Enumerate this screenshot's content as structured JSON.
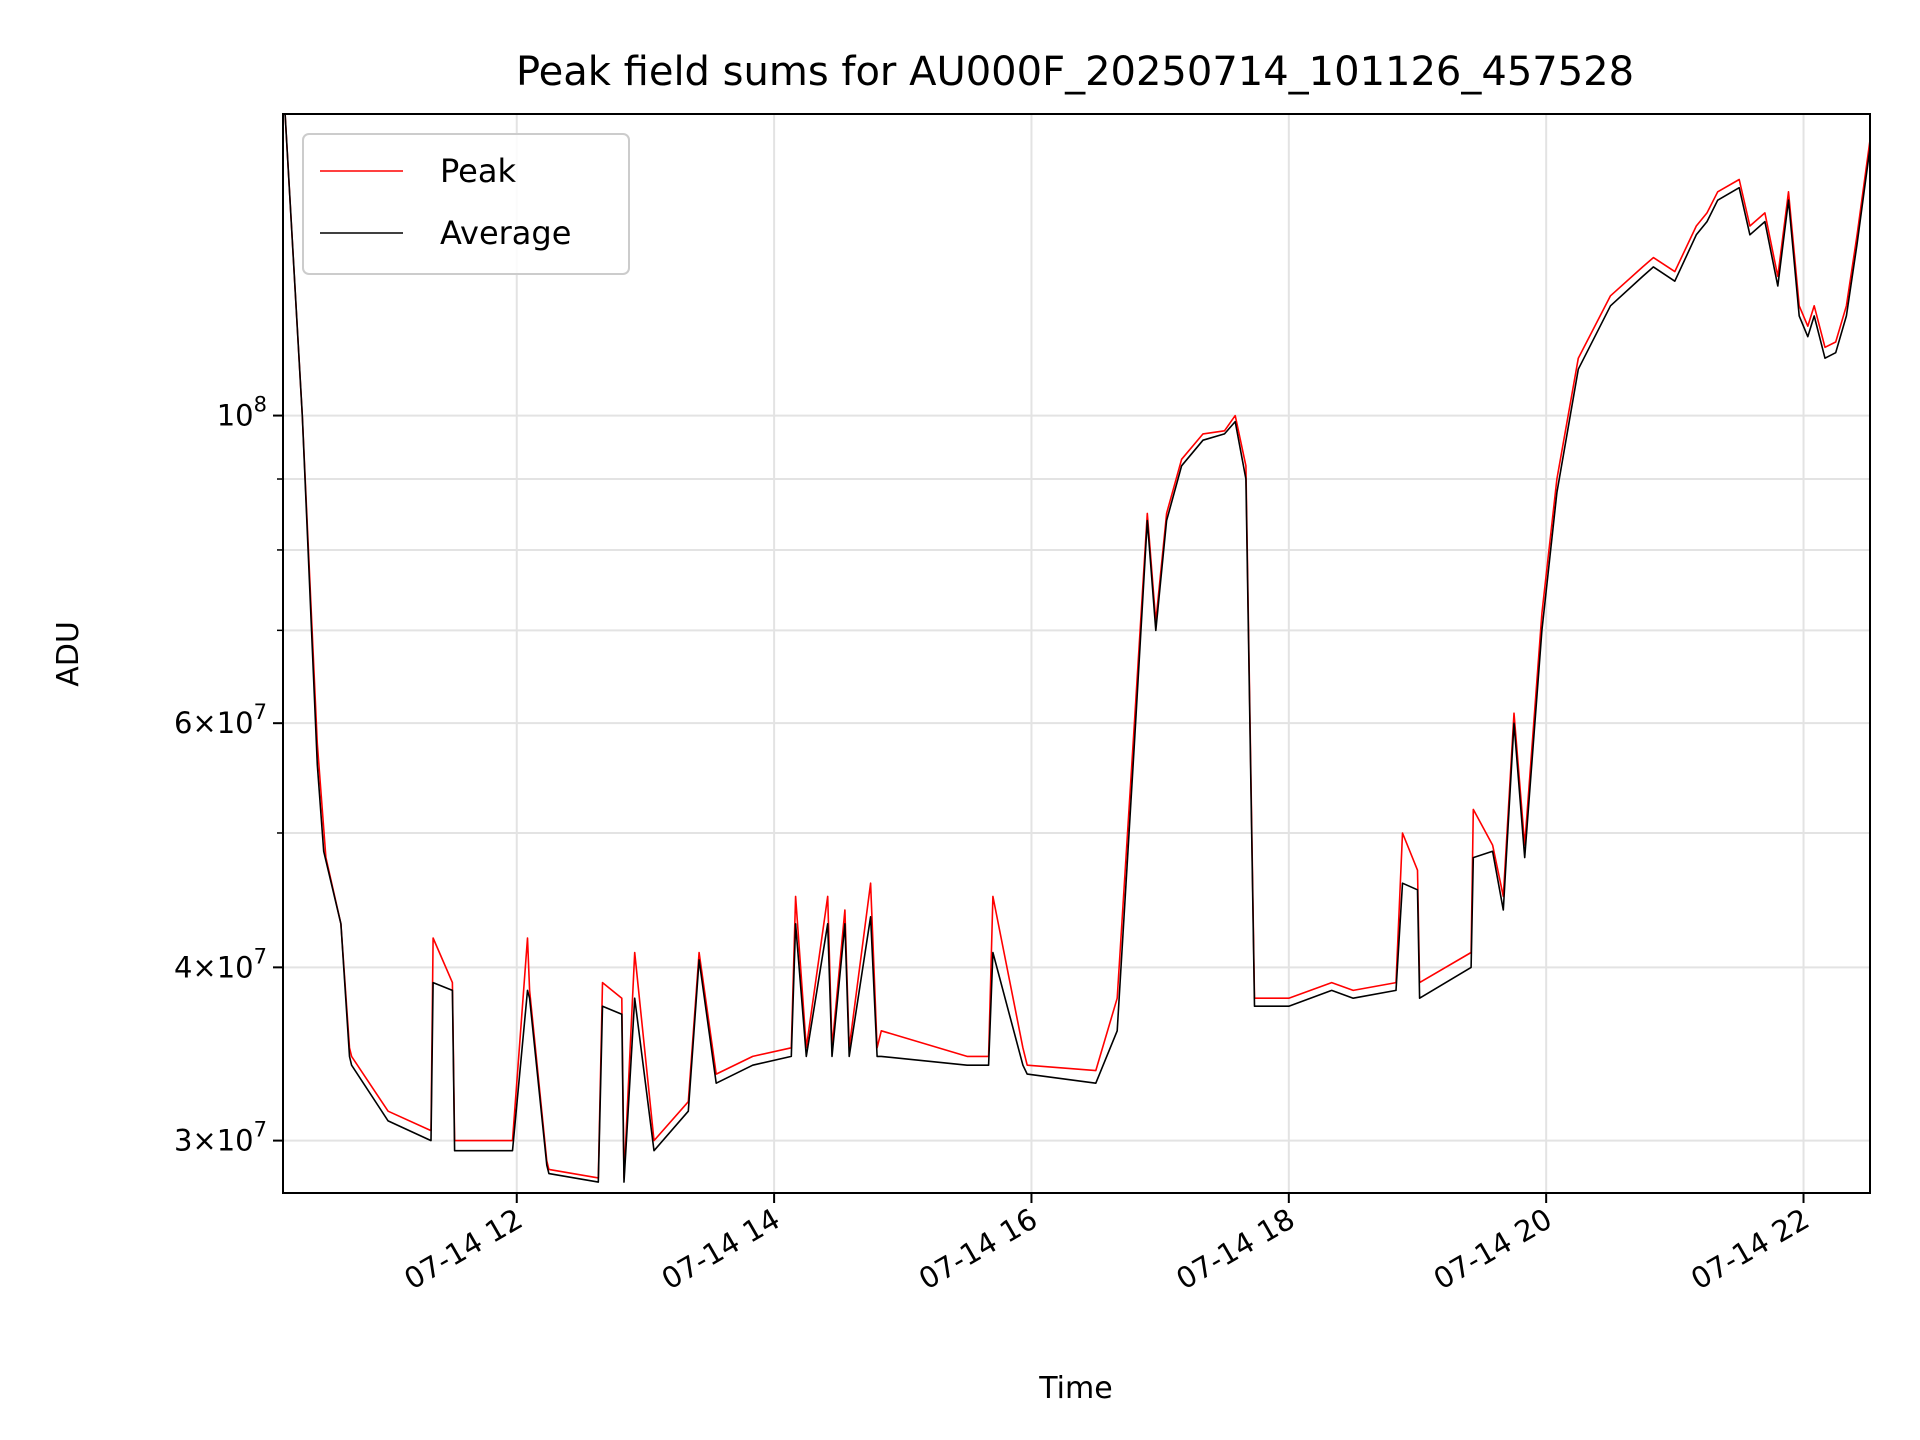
{
  "chart_data": {
    "type": "line",
    "title": "Peak field sums for AU000F_20250714_101126_457528",
    "xlabel": "Time",
    "ylabel": "ADU",
    "yscale": "log",
    "xlim": [
      "2025-07-14 10:11",
      "2025-07-14 22:31"
    ],
    "ylim": [
      27500000,
      165000000
    ],
    "grid": true,
    "legend_position": "top-left",
    "x_ticks": [
      {
        "time": "2025-07-14 12:00",
        "label": "07-14 12"
      },
      {
        "time": "2025-07-14 14:00",
        "label": "07-14 14"
      },
      {
        "time": "2025-07-14 16:00",
        "label": "07-14 16"
      },
      {
        "time": "2025-07-14 18:00",
        "label": "07-14 18"
      },
      {
        "time": "2025-07-14 20:00",
        "label": "07-14 20"
      },
      {
        "time": "2025-07-14 22:00",
        "label": "07-14 22"
      }
    ],
    "y_major_ticks": [
      {
        "value": 30000000,
        "label_mant": "3",
        "label_exp": "7"
      },
      {
        "value": 40000000,
        "label_mant": "4",
        "label_exp": "7"
      },
      {
        "value": 60000000,
        "label_mant": "6",
        "label_exp": "7"
      },
      {
        "value": 100000000,
        "label_mant": "",
        "label_exp": "8"
      }
    ],
    "y_minor_ticks": [
      50000000,
      70000000,
      80000000,
      90000000
    ],
    "series": [
      {
        "name": "Peak",
        "color": "#ff0000",
        "x": [
          "2025-07-14 10:12",
          "2025-07-14 10:20",
          "2025-07-14 10:27",
          "2025-07-14 10:31",
          "2025-07-14 10:38",
          "2025-07-14 10:42",
          "2025-07-14 10:43",
          "2025-07-14 11:00",
          "2025-07-14 11:20",
          "2025-07-14 11:21",
          "2025-07-14 11:30",
          "2025-07-14 11:31",
          "2025-07-14 11:58",
          "2025-07-14 12:05",
          "2025-07-14 12:06",
          "2025-07-14 12:14",
          "2025-07-14 12:15",
          "2025-07-14 12:38",
          "2025-07-14 12:40",
          "2025-07-14 12:49",
          "2025-07-14 12:50",
          "2025-07-14 12:55",
          "2025-07-14 13:04",
          "2025-07-14 13:20",
          "2025-07-14 13:25",
          "2025-07-14 13:33",
          "2025-07-14 13:50",
          "2025-07-14 14:08",
          "2025-07-14 14:10",
          "2025-07-14 14:15",
          "2025-07-14 14:25",
          "2025-07-14 14:27",
          "2025-07-14 14:33",
          "2025-07-14 14:35",
          "2025-07-14 14:45",
          "2025-07-14 14:48",
          "2025-07-14 14:50",
          "2025-07-14 15:30",
          "2025-07-14 15:40",
          "2025-07-14 15:42",
          "2025-07-14 15:56",
          "2025-07-14 15:58",
          "2025-07-14 16:30",
          "2025-07-14 16:40",
          "2025-07-14 16:48",
          "2025-07-14 16:54",
          "2025-07-14 16:58",
          "2025-07-14 17:03",
          "2025-07-14 17:10",
          "2025-07-14 17:20",
          "2025-07-14 17:30",
          "2025-07-14 17:35",
          "2025-07-14 17:40",
          "2025-07-14 17:44",
          "2025-07-14 18:00",
          "2025-07-14 18:20",
          "2025-07-14 18:30",
          "2025-07-14 18:50",
          "2025-07-14 18:53",
          "2025-07-14 19:00",
          "2025-07-14 19:01",
          "2025-07-14 19:25",
          "2025-07-14 19:26",
          "2025-07-14 19:35",
          "2025-07-14 19:40",
          "2025-07-14 19:45",
          "2025-07-14 19:50",
          "2025-07-14 19:58",
          "2025-07-14 20:05",
          "2025-07-14 20:15",
          "2025-07-14 20:30",
          "2025-07-14 20:45",
          "2025-07-14 20:50",
          "2025-07-14 21:00",
          "2025-07-14 21:10",
          "2025-07-14 21:15",
          "2025-07-14 21:20",
          "2025-07-14 21:30",
          "2025-07-14 21:35",
          "2025-07-14 21:42",
          "2025-07-14 21:48",
          "2025-07-14 21:53",
          "2025-07-14 21:58",
          "2025-07-14 22:02",
          "2025-07-14 22:05",
          "2025-07-14 22:10",
          "2025-07-14 22:15",
          "2025-07-14 22:20",
          "2025-07-14 22:25",
          "2025-07-14 22:31"
        ],
        "values": [
          165000000,
          100000000,
          58000000,
          48000000,
          43000000,
          35000000,
          34500000,
          31500000,
          30500000,
          42000000,
          39000000,
          30000000,
          30000000,
          42000000,
          38500000,
          29000000,
          28600000,
          28200000,
          39000000,
          38000000,
          28200000,
          41000000,
          30000000,
          32000000,
          41000000,
          33500000,
          34500000,
          35000000,
          45000000,
          35000000,
          45000000,
          35000000,
          44000000,
          35000000,
          46000000,
          35000000,
          36000000,
          34500000,
          34500000,
          45000000,
          35000000,
          34000000,
          33700000,
          38000000,
          60000000,
          85000000,
          71000000,
          85000000,
          93000000,
          97000000,
          97500000,
          100000000,
          92000000,
          38000000,
          38000000,
          39000000,
          38500000,
          39000000,
          50000000,
          47000000,
          39000000,
          41000000,
          52000000,
          49000000,
          45000000,
          61000000,
          49000000,
          72000000,
          90000000,
          110000000,
          122000000,
          128000000,
          130000000,
          127000000,
          137000000,
          140000000,
          145000000,
          148000000,
          137000000,
          140000000,
          126000000,
          145000000,
          120000000,
          116000000,
          120000000,
          112000000,
          113000000,
          120000000,
          135000000,
          158000000
        ]
      },
      {
        "name": "Average",
        "color": "#000000",
        "x": [
          "2025-07-14 10:12",
          "2025-07-14 10:20",
          "2025-07-14 10:27",
          "2025-07-14 10:30",
          "2025-07-14 10:38",
          "2025-07-14 10:42",
          "2025-07-14 10:43",
          "2025-07-14 11:00",
          "2025-07-14 11:20",
          "2025-07-14 11:21",
          "2025-07-14 11:30",
          "2025-07-14 11:31",
          "2025-07-14 11:58",
          "2025-07-14 12:05",
          "2025-07-14 12:06",
          "2025-07-14 12:14",
          "2025-07-14 12:15",
          "2025-07-14 12:38",
          "2025-07-14 12:40",
          "2025-07-14 12:49",
          "2025-07-14 12:50",
          "2025-07-14 12:55",
          "2025-07-14 13:04",
          "2025-07-14 13:20",
          "2025-07-14 13:25",
          "2025-07-14 13:33",
          "2025-07-14 13:50",
          "2025-07-14 14:08",
          "2025-07-14 14:10",
          "2025-07-14 14:15",
          "2025-07-14 14:25",
          "2025-07-14 14:27",
          "2025-07-14 14:33",
          "2025-07-14 14:35",
          "2025-07-14 14:45",
          "2025-07-14 14:48",
          "2025-07-14 14:50",
          "2025-07-14 15:30",
          "2025-07-14 15:40",
          "2025-07-14 15:42",
          "2025-07-14 15:56",
          "2025-07-14 15:58",
          "2025-07-14 16:30",
          "2025-07-14 16:40",
          "2025-07-14 16:48",
          "2025-07-14 16:54",
          "2025-07-14 16:58",
          "2025-07-14 17:03",
          "2025-07-14 17:10",
          "2025-07-14 17:20",
          "2025-07-14 17:30",
          "2025-07-14 17:35",
          "2025-07-14 17:40",
          "2025-07-14 17:44",
          "2025-07-14 18:00",
          "2025-07-14 18:20",
          "2025-07-14 18:30",
          "2025-07-14 18:50",
          "2025-07-14 18:53",
          "2025-07-14 19:00",
          "2025-07-14 19:01",
          "2025-07-14 19:25",
          "2025-07-14 19:26",
          "2025-07-14 19:35",
          "2025-07-14 19:40",
          "2025-07-14 19:45",
          "2025-07-14 19:50",
          "2025-07-14 19:58",
          "2025-07-14 20:05",
          "2025-07-14 20:15",
          "2025-07-14 20:30",
          "2025-07-14 20:45",
          "2025-07-14 20:50",
          "2025-07-14 21:00",
          "2025-07-14 21:10",
          "2025-07-14 21:15",
          "2025-07-14 21:20",
          "2025-07-14 21:30",
          "2025-07-14 21:35",
          "2025-07-14 21:42",
          "2025-07-14 21:48",
          "2025-07-14 21:53",
          "2025-07-14 21:58",
          "2025-07-14 22:02",
          "2025-07-14 22:05",
          "2025-07-14 22:10",
          "2025-07-14 22:15",
          "2025-07-14 22:20",
          "2025-07-14 22:25",
          "2025-07-14 22:31"
        ],
        "values": [
          165000000,
          100000000,
          56000000,
          48500000,
          43000000,
          34500000,
          34000000,
          31000000,
          30000000,
          39000000,
          38500000,
          29500000,
          29500000,
          38500000,
          38000000,
          28800000,
          28400000,
          28000000,
          37500000,
          37000000,
          28000000,
          38000000,
          29500000,
          31500000,
          40500000,
          33000000,
          34000000,
          34500000,
          43000000,
          34500000,
          43000000,
          34500000,
          43000000,
          34500000,
          43500000,
          34500000,
          34500000,
          34000000,
          34000000,
          41000000,
          34000000,
          33500000,
          33000000,
          36000000,
          58000000,
          84000000,
          70000000,
          84000000,
          92000000,
          96000000,
          97000000,
          99000000,
          90000000,
          37500000,
          37500000,
          38500000,
          38000000,
          38500000,
          46000000,
          45500000,
          38000000,
          40000000,
          48000000,
          48500000,
          44000000,
          60000000,
          48000000,
          70000000,
          88000000,
          108000000,
          120000000,
          126000000,
          128000000,
          125000000,
          135000000,
          138000000,
          143000000,
          146000000,
          135000000,
          138000000,
          124000000,
          143000000,
          118000000,
          114000000,
          118000000,
          110000000,
          111000000,
          118000000,
          133000000,
          156000000
        ]
      }
    ]
  }
}
